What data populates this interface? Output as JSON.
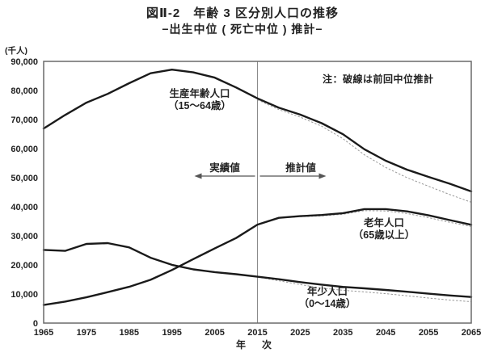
{
  "chart_data": {
    "type": "line",
    "title": "図Ⅱ-2　年齢 3 区分別人口の推移",
    "subtitle": "−出生中位 ( 死亡中位 ) 推計−",
    "note": "注：破線は前回中位推計",
    "unit_label": "(千人)",
    "xlabel": "年　次",
    "xdomain": [
      1965,
      2065
    ],
    "ylim": [
      0,
      90000
    ],
    "grid": false,
    "legend_position": "none",
    "divider_year": 2015,
    "region_labels": {
      "actual": "実績値",
      "projected": "推計値"
    },
    "xticks": [
      1965,
      1975,
      1985,
      1995,
      2005,
      2015,
      2025,
      2035,
      2045,
      2055,
      2065
    ],
    "yticks": [
      {
        "value": 0,
        "label": "0"
      },
      {
        "value": 10000,
        "label": "10,000"
      },
      {
        "value": 20000,
        "label": "20,000"
      },
      {
        "value": 30000,
        "label": "30,000"
      },
      {
        "value": 40000,
        "label": "40,000"
      },
      {
        "value": 50000,
        "label": "50,000"
      },
      {
        "value": 60000,
        "label": "60,000"
      },
      {
        "value": 70000,
        "label": "70,000"
      },
      {
        "value": 80000,
        "label": "80,000"
      },
      {
        "value": 90000,
        "label": "90,000"
      }
    ],
    "x_years": [
      1965,
      1970,
      1975,
      1980,
      1985,
      1990,
      1995,
      2000,
      2005,
      2010,
      2015,
      2020,
      2025,
      2030,
      2035,
      2040,
      2045,
      2050,
      2055,
      2060,
      2065
    ],
    "prev_years": [
      2015,
      2020,
      2025,
      2030,
      2035,
      2040,
      2045,
      2050,
      2055,
      2060,
      2065
    ],
    "series": [
      {
        "key": "working_age",
        "name": "生産年齢人口（15〜64歳）",
        "style": "solid",
        "values": [
          66928,
          71566,
          75807,
          78835,
          82506,
          85904,
          87165,
          86220,
          84422,
          81032,
          77282,
          74058,
          71701,
          68754,
          64942,
          59777,
          55845,
          52750,
          50276,
          47928,
          45291
        ]
      },
      {
        "key": "elderly",
        "name": "老年人口（65歳以上）",
        "style": "solid",
        "values": [
          6236,
          7393,
          8865,
          10647,
          12468,
          14895,
          18261,
          22005,
          25672,
          29246,
          33868,
          36192,
          36771,
          37160,
          37817,
          39206,
          39192,
          38406,
          37042,
          35403,
          33810
        ]
      },
      {
        "key": "child",
        "name": "年少人口（0〜14歳）",
        "style": "solid",
        "values": [
          25166,
          24823,
          27221,
          27507,
          26033,
          22486,
          20014,
          18472,
          17521,
          16803,
          15945,
          15075,
          14073,
          13212,
          12457,
          11936,
          11384,
          10767,
          10123,
          9508,
          8975
        ]
      },
      {
        "key": "working_age_prev",
        "name": "生産年齢人口（前回中位推計）",
        "style": "dashed",
        "x": "prev",
        "values": [
          76818,
          73408,
          70845,
          67730,
          63430,
          57866,
          53531,
          50013,
          47063,
          44183,
          41547
        ]
      },
      {
        "key": "elderly_prev",
        "name": "老年人口（前回中位推計）",
        "style": "dashed",
        "x": "prev",
        "values": [
          33952,
          36124,
          36573,
          36849,
          37407,
          38678,
          38564,
          37676,
          36257,
          34642,
          33211
        ]
      },
      {
        "key": "child_prev",
        "name": "年少人口（前回中位推計）",
        "style": "dashed",
        "x": "prev",
        "values": [
          15827,
          14568,
          13240,
          12039,
          11287,
          10732,
          10116,
          9387,
          8614,
          7912,
          7370
        ]
      }
    ],
    "annotations": {
      "working_age": {
        "line1": "生産年齢人口",
        "line2": "（15〜64歳）"
      },
      "elderly": {
        "line1": "老年人口",
        "line2": "（65歳以上）"
      },
      "child": {
        "line1": "年少人口",
        "line2": "（0〜14歳）"
      }
    },
    "colors": {
      "series": "#1a1a1a",
      "previous": "#999999",
      "axis": "#6a6a6a",
      "divider": "#8a8a8a",
      "arrow": "#555555",
      "text": "#222222",
      "background": "#ffffff"
    }
  }
}
